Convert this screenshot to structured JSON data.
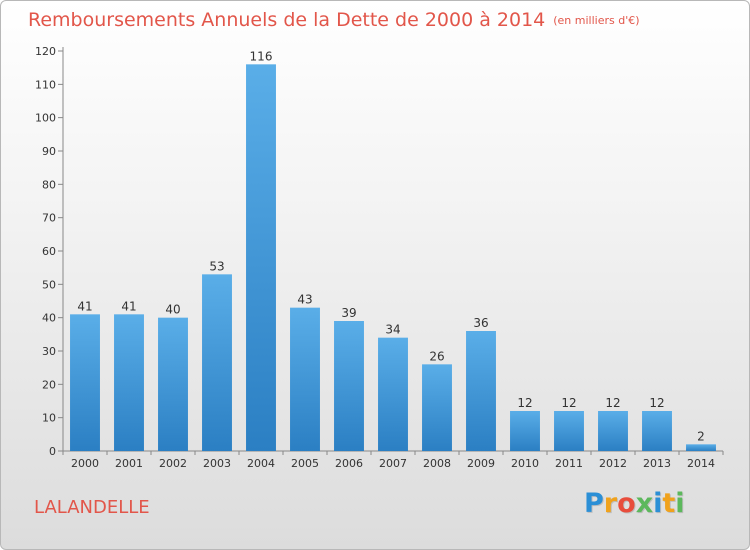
{
  "header": {
    "title": "Remboursements Annuels de la Dette de 2000 à 2014",
    "unit": "(en milliers d'€)"
  },
  "footer": {
    "city": "LALANDELLE",
    "logo_letters": [
      {
        "char": "P",
        "color": "#2b8fd6"
      },
      {
        "char": "r",
        "color": "#f0a21c"
      },
      {
        "char": "o",
        "color": "#e84d3c"
      },
      {
        "char": "x",
        "color": "#5cb85c"
      },
      {
        "char": "i",
        "color": "#2b8fd6"
      },
      {
        "char": "t",
        "color": "#f0a21c"
      },
      {
        "char": "i",
        "color": "#5cb85c"
      }
    ]
  },
  "chart_data": {
    "type": "bar",
    "title": "Remboursements Annuels de la Dette de 2000 à 2014",
    "subtitle": "(en milliers d'€)",
    "xlabel": "",
    "ylabel": "",
    "categories": [
      "2000",
      "2001",
      "2002",
      "2003",
      "2004",
      "2005",
      "2006",
      "2007",
      "2008",
      "2009",
      "2010",
      "2011",
      "2012",
      "2013",
      "2014"
    ],
    "values": [
      41,
      41,
      40,
      53,
      116,
      43,
      39,
      34,
      26,
      36,
      12,
      12,
      12,
      12,
      2
    ],
    "ylim": [
      0,
      120
    ],
    "yticks": [
      0,
      10,
      20,
      30,
      40,
      50,
      60,
      70,
      80,
      90,
      100,
      110,
      120
    ],
    "grid": false,
    "bar_color_top": "#5aaee8",
    "bar_color_bottom": "#2b7fc3"
  }
}
